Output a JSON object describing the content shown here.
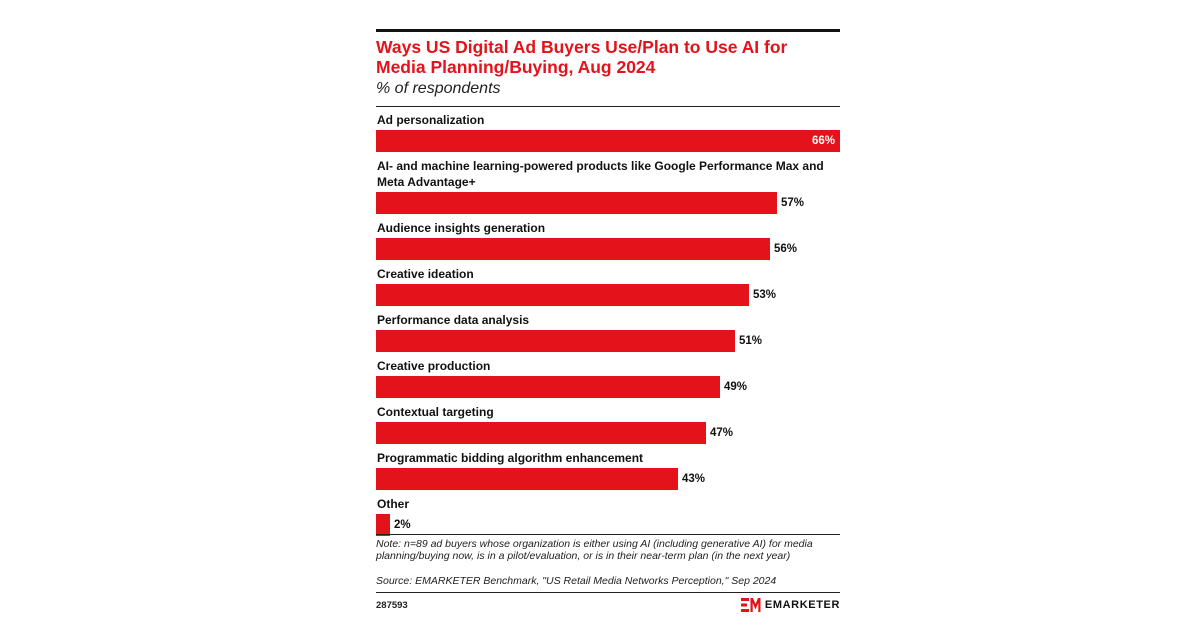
{
  "chart_data": {
    "type": "bar",
    "orientation": "horizontal",
    "title": "Ways US Digital Ad Buyers Use/Plan to Use AI for Media Planning/Buying, Aug 2024",
    "subtitle": "% of respondents",
    "categories": [
      "Ad personalization",
      "AI- and machine learning-powered products like Google Performance Max and Meta Advantage+",
      "Audience insights generation",
      "Creative ideation",
      "Performance data analysis",
      "Creative production",
      "Contextual targeting",
      "Programmatic bidding algorithm enhancement",
      "Other"
    ],
    "values": [
      66,
      57,
      56,
      53,
      51,
      49,
      47,
      43,
      2
    ],
    "value_labels": [
      "66%",
      "57%",
      "56%",
      "53%",
      "51%",
      "49%",
      "47%",
      "43%",
      "2%"
    ],
    "xlim": [
      0,
      66
    ],
    "bar_color": "#e4121b",
    "grid": false
  },
  "note": "Note: n=89 ad buyers whose organization is either using AI (including generative AI) for media planning/buying now, is in a pilot/evaluation, or is in their near-term plan (in the next year)",
  "source": "Source: EMARKETER Benchmark, \"US Retail Media Networks Perception,\" Sep 2024",
  "chart_id": "287593",
  "brand": {
    "name": "EMARKETER",
    "logo_icon": "em-logo-icon",
    "accent": "#e4121b"
  }
}
